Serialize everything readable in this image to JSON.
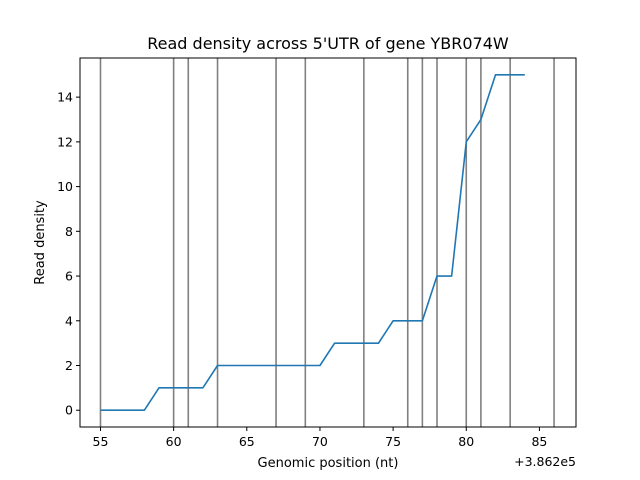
{
  "chart_data": {
    "type": "line",
    "title": "Read density across 5'UTR of gene YBR074W",
    "xlabel": "Genomic position (nt)",
    "ylabel": "Read density",
    "x_offset_label": "+3.862e5",
    "x_offset": 386200,
    "xlim": [
      386253.6,
      386287.5
    ],
    "ylim": [
      -0.75,
      15.75
    ],
    "grid": false,
    "x_ticks": [
      55,
      60,
      65,
      70,
      75,
      80,
      85
    ],
    "y_ticks": [
      0,
      2,
      4,
      6,
      8,
      10,
      12,
      14
    ],
    "line_color": "#1f77b4",
    "vline_color": "#808080",
    "series": [
      {
        "x": [
          386255,
          386256,
          386257,
          386258,
          386259,
          386260,
          386261,
          386262,
          386263,
          386264,
          386265,
          386266,
          386267,
          386268,
          386269,
          386270,
          386271,
          386272,
          386273,
          386274,
          386275,
          386276,
          386277,
          386278,
          386279,
          386280,
          386281,
          386282,
          386283,
          386284
        ],
        "values": [
          0,
          0,
          0,
          0,
          1,
          1,
          1,
          1,
          2,
          2,
          2,
          2,
          2,
          2,
          2,
          2,
          3,
          3,
          3,
          3,
          4,
          4,
          4,
          6,
          6,
          12,
          13,
          15,
          15,
          15
        ]
      }
    ],
    "vertical_lines": [
      386255,
      386260,
      386261,
      386263,
      386267,
      386269,
      386273,
      386276,
      386277,
      386278,
      386280,
      386281,
      386283,
      386286
    ]
  }
}
